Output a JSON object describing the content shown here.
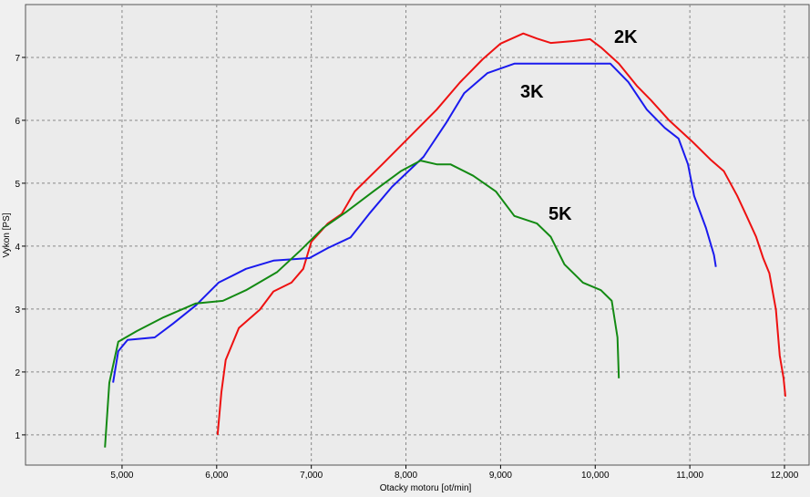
{
  "chart_data": {
    "type": "line",
    "x_label": "Otacky motoru [ot/min]",
    "y_label": "Vykon [PS]",
    "xlim": [
      3980,
      12260
    ],
    "ylim": [
      0.52,
      7.84
    ],
    "xticks": [
      {
        "value": 5000,
        "label": "5,000"
      },
      {
        "value": 6000,
        "label": "6,000"
      },
      {
        "value": 7000,
        "label": "7,000"
      },
      {
        "value": 8000,
        "label": "8,000"
      },
      {
        "value": 9000,
        "label": "9,000"
      },
      {
        "value": 10000,
        "label": "10,000"
      },
      {
        "value": 11000,
        "label": "11,000"
      },
      {
        "value": 12000,
        "label": "12,000"
      }
    ],
    "yticks": [
      1,
      2,
      3,
      4,
      5,
      6,
      7
    ],
    "grid": true,
    "annotations": [
      {
        "text": "2K",
        "color": "#ee1111"
      },
      {
        "text": "3K",
        "color": "#1a1aee"
      },
      {
        "text": "5K",
        "color": "#138a13"
      }
    ],
    "series": [
      {
        "color": "#ee1111",
        "x": [
          6010,
          6050,
          6095,
          6235,
          6455,
          6600,
          6790,
          6915,
          7000,
          7175,
          7320,
          7460,
          7750,
          8040,
          8325,
          8570,
          8810,
          9000,
          9240,
          9385,
          9530,
          9770,
          9945,
          10060,
          10250,
          10445,
          10590,
          10780,
          11020,
          11215,
          11360,
          11500,
          11600,
          11700,
          11775,
          11840,
          11910,
          11950,
          11990,
          12010
        ],
        "values": [
          1.0,
          1.68,
          2.19,
          2.7,
          2.99,
          3.28,
          3.42,
          3.64,
          4.07,
          4.36,
          4.51,
          4.87,
          5.3,
          5.74,
          6.17,
          6.6,
          6.97,
          7.22,
          7.38,
          7.3,
          7.23,
          7.26,
          7.29,
          7.16,
          6.9,
          6.54,
          6.32,
          6.0,
          5.67,
          5.38,
          5.19,
          4.8,
          4.48,
          4.15,
          3.81,
          3.57,
          2.99,
          2.26,
          1.9,
          1.61
        ]
      },
      {
        "color": "#1a1aee",
        "x": [
          4905,
          4960,
          5058,
          5345,
          5540,
          5780,
          6020,
          6310,
          6600,
          6980,
          7175,
          7415,
          7610,
          7850,
          8185,
          8425,
          8615,
          8860,
          9145,
          9580,
          9870,
          10160,
          10350,
          10545,
          10735,
          10880,
          10980,
          11045,
          11170,
          11255,
          11275
        ],
        "values": [
          1.83,
          2.33,
          2.51,
          2.55,
          2.77,
          3.06,
          3.42,
          3.64,
          3.77,
          3.81,
          3.97,
          4.14,
          4.51,
          4.94,
          5.42,
          5.96,
          6.43,
          6.75,
          6.9,
          6.9,
          6.9,
          6.9,
          6.61,
          6.17,
          5.88,
          5.71,
          5.3,
          4.8,
          4.29,
          3.86,
          3.67
        ]
      },
      {
        "color": "#138a13",
        "x": [
          4820,
          4866,
          4960,
          5155,
          5440,
          5780,
          6065,
          6310,
          6640,
          6885,
          7125,
          7365,
          7655,
          7945,
          8155,
          8325,
          8470,
          8710,
          8950,
          9145,
          9385,
          9530,
          9675,
          9870,
          10060,
          10175,
          10235,
          10250
        ],
        "values": [
          0.8,
          1.83,
          2.48,
          2.65,
          2.87,
          3.09,
          3.13,
          3.3,
          3.59,
          3.93,
          4.29,
          4.54,
          4.87,
          5.19,
          5.36,
          5.3,
          5.3,
          5.12,
          4.87,
          4.48,
          4.36,
          4.15,
          3.71,
          3.42,
          3.3,
          3.13,
          2.55,
          1.9
        ]
      }
    ]
  }
}
